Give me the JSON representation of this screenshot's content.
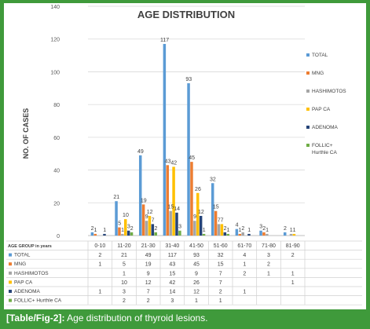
{
  "caption": {
    "label": "[Table/Fig-2]:",
    "text": "Age distribution of thyroid lesions."
  },
  "chart_data": {
    "type": "bar",
    "title": "AGE DISTRIBUTION",
    "ylabel": "NO. OF CASES",
    "xlabel": "AGE GROUP in years",
    "ylim": [
      0,
      140
    ],
    "yticks": [
      0,
      20,
      40,
      60,
      80,
      100,
      120,
      140
    ],
    "grid": true,
    "legend_position": "right",
    "categories": [
      "0-10",
      "11-20",
      "21-30",
      "31-40",
      "41-50",
      "51-60",
      "61-70",
      "71-80",
      "81-90"
    ],
    "series": [
      {
        "name": "TOTAL",
        "color": "#5b9bd5",
        "values": [
          2,
          21,
          49,
          117,
          93,
          32,
          4,
          3,
          2
        ]
      },
      {
        "name": "MNG",
        "color": "#ed7d31",
        "values": [
          1,
          5,
          19,
          43,
          45,
          15,
          1,
          2,
          null
        ]
      },
      {
        "name": "HASHIMOTOS",
        "color": "#a5a5a5",
        "values": [
          null,
          1,
          9,
          15,
          9,
          7,
          2,
          1,
          1
        ]
      },
      {
        "name": "PAP CA",
        "color": "#ffc000",
        "values": [
          null,
          10,
          12,
          42,
          26,
          7,
          null,
          null,
          1
        ]
      },
      {
        "name": "ADENOMA",
        "color": "#264478",
        "values": [
          1,
          3,
          7,
          14,
          12,
          2,
          1,
          null,
          null
        ]
      },
      {
        "name": "FOLLIC+ Hurthle CA",
        "legend_lines": [
          "FOLLIC+",
          "Hurthle CA"
        ],
        "table_label": "FOLLIC+ Hurthle CA",
        "color": "#70ad47",
        "values": [
          null,
          2,
          2,
          3,
          1,
          1,
          null,
          null,
          null
        ]
      }
    ]
  }
}
